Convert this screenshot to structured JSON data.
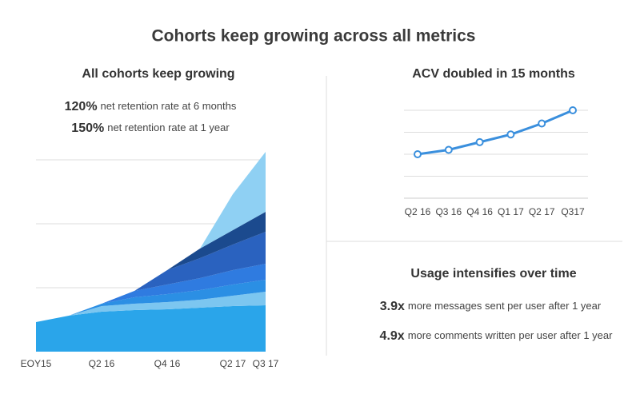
{
  "title": "Cohorts keep growing across all metrics",
  "retention": [
    {
      "value": "120%",
      "text": "net retention rate at 6 months"
    },
    {
      "value": "150%",
      "text": "net retention rate at 1 year"
    }
  ],
  "usage": {
    "title": "Usage intensifies over time",
    "stats": [
      {
        "value": "3.9x",
        "text": "more messages sent per user after 1 year"
      },
      {
        "value": "4.9x",
        "text": "more comments written per user after 1 year"
      }
    ]
  },
  "chart_data": [
    {
      "type": "area",
      "stacked": true,
      "title": "All cohorts keep growing",
      "categories": [
        "EOY15",
        null,
        "Q2 16",
        null,
        "Q4 16",
        null,
        "Q2 17",
        "Q3 17"
      ],
      "series": [
        {
          "color": "#2aa5ea",
          "values": [
            37,
            45,
            50,
            52,
            53,
            55,
            57,
            58
          ]
        },
        {
          "color": "#7cc6f0",
          "values": [
            0,
            0,
            7,
            8,
            9,
            10,
            13,
            17
          ]
        },
        {
          "color": "#2b8fe4",
          "values": [
            0,
            0,
            3,
            8,
            10,
            12,
            14,
            15
          ]
        },
        {
          "color": "#2f7be0",
          "values": [
            0,
            0,
            0,
            8,
            12,
            15,
            18,
            20
          ]
        },
        {
          "color": "#2a62bf",
          "values": [
            0,
            0,
            0,
            0,
            18,
            25,
            32,
            40
          ]
        },
        {
          "color": "#1b4a8e",
          "values": [
            0,
            0,
            0,
            0,
            0,
            12,
            18,
            25
          ]
        },
        {
          "color": "#8fd0f3",
          "values": [
            0,
            0,
            0,
            0,
            0,
            0,
            45,
            75
          ]
        }
      ],
      "ylim": [
        0,
        240
      ],
      "yticks": [
        80,
        160,
        240
      ],
      "grid": true,
      "tick_labels": false
    },
    {
      "type": "line",
      "title": "ACV doubled in 15 months",
      "categories": [
        "Q2 16",
        "Q3 16",
        "Q4 16",
        "Q1 17",
        "Q2 17",
        "Q317"
      ],
      "values": [
        2.0,
        2.2,
        2.55,
        2.9,
        3.4,
        4.0
      ],
      "color": "#3a8fdd",
      "ylim": [
        0,
        4
      ],
      "yticks": [
        0,
        1,
        2,
        3,
        4
      ],
      "grid": true,
      "tick_labels": false
    }
  ]
}
